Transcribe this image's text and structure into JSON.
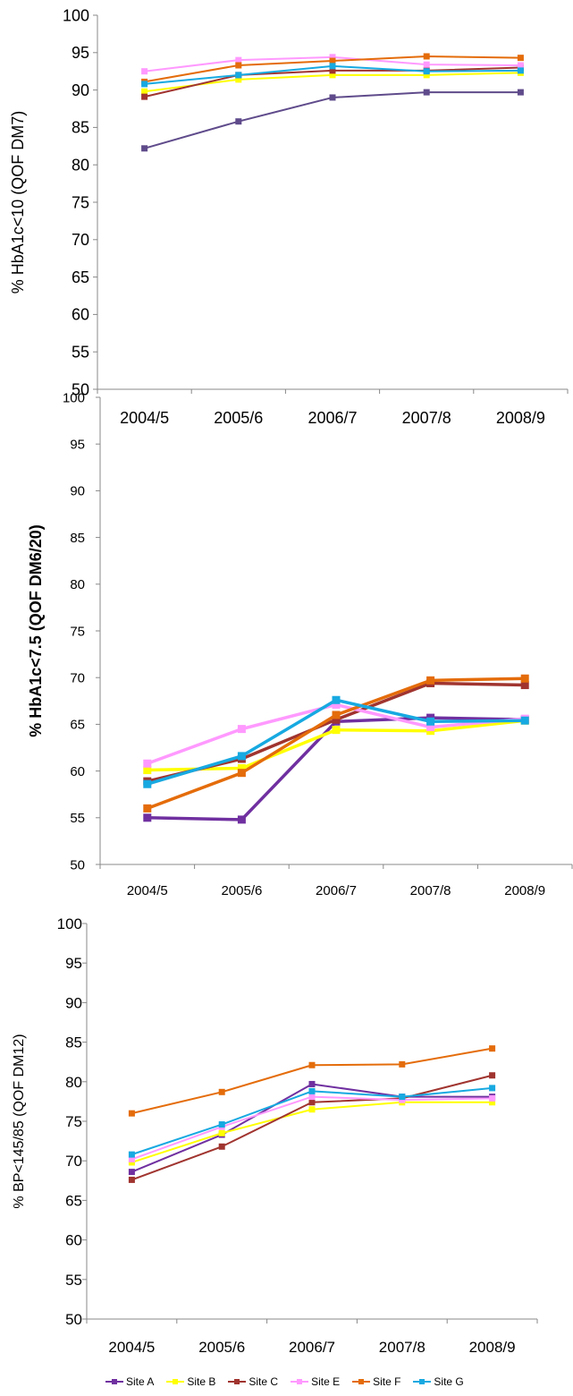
{
  "chart_data": [
    {
      "type": "line",
      "ylabel": "% HbA1c<10 (QOF DM7)",
      "categories": [
        "2004/5",
        "2005/6",
        "2006/7",
        "2007/8",
        "2008/9"
      ],
      "ylim": [
        50,
        100
      ],
      "yticks": [
        "50",
        "55",
        "60",
        "65",
        "70",
        "75",
        "80",
        "85",
        "90",
        "95",
        "100"
      ],
      "series": [
        {
          "name": "Site A",
          "color": "#5f4b8b",
          "values": [
            82.2,
            85.8,
            89.0,
            89.7,
            89.7
          ]
        },
        {
          "name": "Site B",
          "color": "#ffff00",
          "values": [
            89.8,
            91.4,
            92.0,
            92.0,
            92.3
          ]
        },
        {
          "name": "Site C",
          "color": "#a0342f",
          "values": [
            89.1,
            92.0,
            92.6,
            92.6,
            93.0
          ]
        },
        {
          "name": "Site E",
          "color": "#ff99ff",
          "values": [
            92.5,
            94.0,
            94.4,
            93.4,
            93.3
          ]
        },
        {
          "name": "Site F",
          "color": "#e46c0a",
          "values": [
            91.1,
            93.3,
            93.9,
            94.5,
            94.3
          ]
        },
        {
          "name": "Site G",
          "color": "#17a9e1",
          "values": [
            90.8,
            92.0,
            93.2,
            92.5,
            92.6
          ]
        }
      ]
    },
    {
      "type": "line",
      "ylabel": "% HbA1c<7.5 (QOF DM6/20)",
      "categories": [
        "2004/5",
        "2005/6",
        "2006/7",
        "2007/8",
        "2008/9"
      ],
      "ylim": [
        50,
        100
      ],
      "yticks": [
        "50",
        "55",
        "60",
        "65",
        "70",
        "75",
        "80",
        "85",
        "90",
        "95",
        "100"
      ],
      "series": [
        {
          "name": "Site A",
          "color": "#7030a0",
          "values": [
            55.0,
            54.8,
            65.3,
            65.7,
            65.5
          ]
        },
        {
          "name": "Site B",
          "color": "#ffff00",
          "values": [
            60.1,
            60.3,
            64.4,
            64.3,
            65.4
          ]
        },
        {
          "name": "Site C",
          "color": "#a0342f",
          "values": [
            58.9,
            61.3,
            65.5,
            69.4,
            69.2
          ]
        },
        {
          "name": "Site E",
          "color": "#ff99ff",
          "values": [
            60.8,
            64.5,
            67.1,
            64.7,
            65.6
          ]
        },
        {
          "name": "Site F",
          "color": "#e46c0a",
          "values": [
            56.0,
            59.8,
            66.0,
            69.7,
            69.9
          ]
        },
        {
          "name": "Site G",
          "color": "#17a9e1",
          "values": [
            58.6,
            61.6,
            67.6,
            65.3,
            65.4
          ]
        }
      ]
    },
    {
      "type": "line",
      "ylabel": "% BP<145/85 (QOF DM12)",
      "categories": [
        "2004/5",
        "2005/6",
        "2006/7",
        "2007/8",
        "2008/9"
      ],
      "ylim": [
        50,
        100
      ],
      "yticks": [
        "50",
        "55",
        "60",
        "65",
        "70",
        "75",
        "80",
        "85",
        "90",
        "95",
        "100"
      ],
      "series": [
        {
          "name": "Site A",
          "color": "#7030a0",
          "values": [
            68.6,
            73.3,
            79.7,
            78.1,
            78.1
          ]
        },
        {
          "name": "Site B",
          "color": "#ffff00",
          "values": [
            69.8,
            73.5,
            76.5,
            77.4,
            77.4
          ]
        },
        {
          "name": "Site C",
          "color": "#a0342f",
          "values": [
            67.6,
            71.8,
            77.4,
            77.9,
            80.8
          ]
        },
        {
          "name": "Site E",
          "color": "#ff99ff",
          "values": [
            70.2,
            74.3,
            78.1,
            77.7,
            77.9
          ]
        },
        {
          "name": "Site F",
          "color": "#e46c0a",
          "values": [
            76.0,
            78.7,
            82.1,
            82.2,
            84.2
          ]
        },
        {
          "name": "Site G",
          "color": "#17a9e1",
          "values": [
            70.8,
            74.6,
            78.8,
            78.1,
            79.2
          ]
        }
      ]
    }
  ],
  "legend": [
    {
      "name": "Site A",
      "color": "#7030a0"
    },
    {
      "name": "Site B",
      "color": "#ffff00"
    },
    {
      "name": "Site C",
      "color": "#a0342f"
    },
    {
      "name": "Site E",
      "color": "#ff99ff"
    },
    {
      "name": "Site F",
      "color": "#e46c0a"
    },
    {
      "name": "Site G",
      "color": "#17a9e1"
    }
  ]
}
